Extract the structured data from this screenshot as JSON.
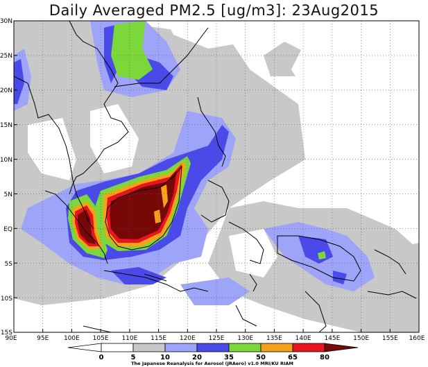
{
  "title": "Daily Averaged PM2.5 [ug/m3]: 23Aug2015",
  "lat_labels": [
    "30N",
    "25N",
    "20N",
    "15N",
    "10N",
    "5N",
    "EQ",
    "5S",
    "10S",
    "15S"
  ],
  "lon_labels": [
    "90E",
    "95E",
    "100E",
    "105E",
    "110E",
    "115E",
    "120E",
    "125E",
    "130E",
    "135E",
    "140E",
    "145E",
    "150E",
    "155E",
    "160E"
  ],
  "colorbar": {
    "levels": [
      "0",
      "5",
      "10",
      "20",
      "35",
      "50",
      "65",
      "80"
    ],
    "colors": [
      "#ffffff",
      "#ffffff",
      "#c8c8c8",
      "#9ea4f8",
      "#4a4ae8",
      "#7cd83a",
      "#f5a21a",
      "#e8141e",
      "#780808"
    ]
  },
  "credit": "The Japanese Reanalysis for Aerosol (JRAero) v1.0 MRI/KU RIAM"
}
